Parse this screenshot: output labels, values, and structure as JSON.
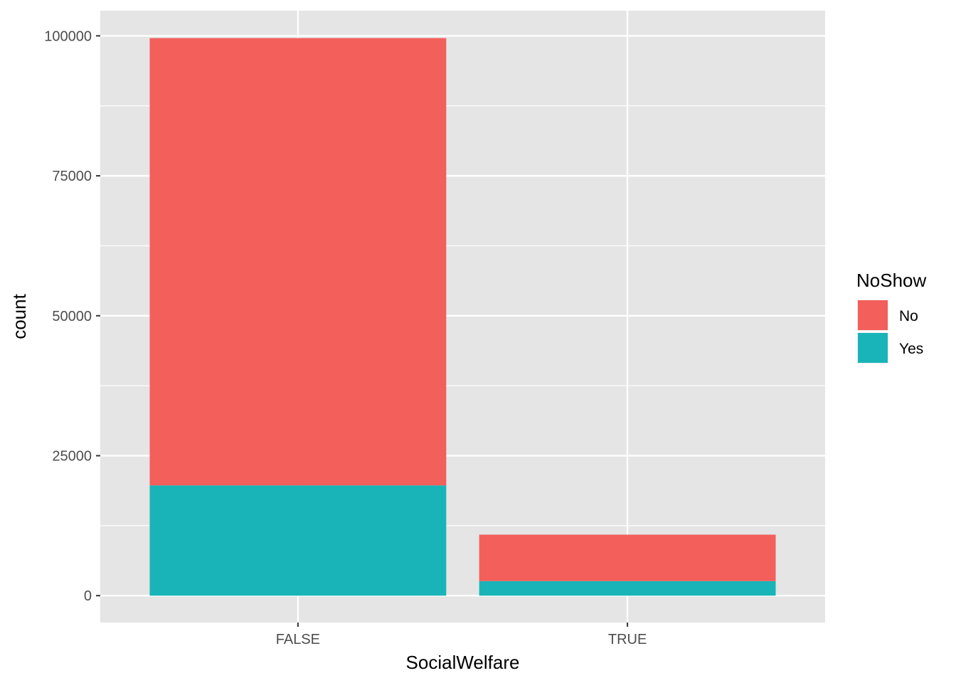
{
  "chart_data": {
    "type": "bar",
    "stacked": true,
    "xlabel": "SocialWelfare",
    "ylabel": "count",
    "categories": [
      "FALSE",
      "TRUE"
    ],
    "series": [
      {
        "name": "No",
        "color": "#F35F5B",
        "values": [
          79900,
          8300
        ]
      },
      {
        "name": "Yes",
        "color": "#19B4B8",
        "values": [
          19700,
          2600
        ]
      }
    ],
    "ylim": [
      -4800,
      104500
    ],
    "yticks": [
      0,
      25000,
      50000,
      75000,
      100000
    ],
    "ytick_labels": [
      "0",
      "25000",
      "50000",
      "75000",
      "100000"
    ],
    "grid": true,
    "panel_background": "#E5E5E5",
    "grid_color": "#FFFFFF",
    "legend": {
      "title": "NoShow",
      "position": "right",
      "entries": [
        "No",
        "Yes"
      ]
    }
  }
}
